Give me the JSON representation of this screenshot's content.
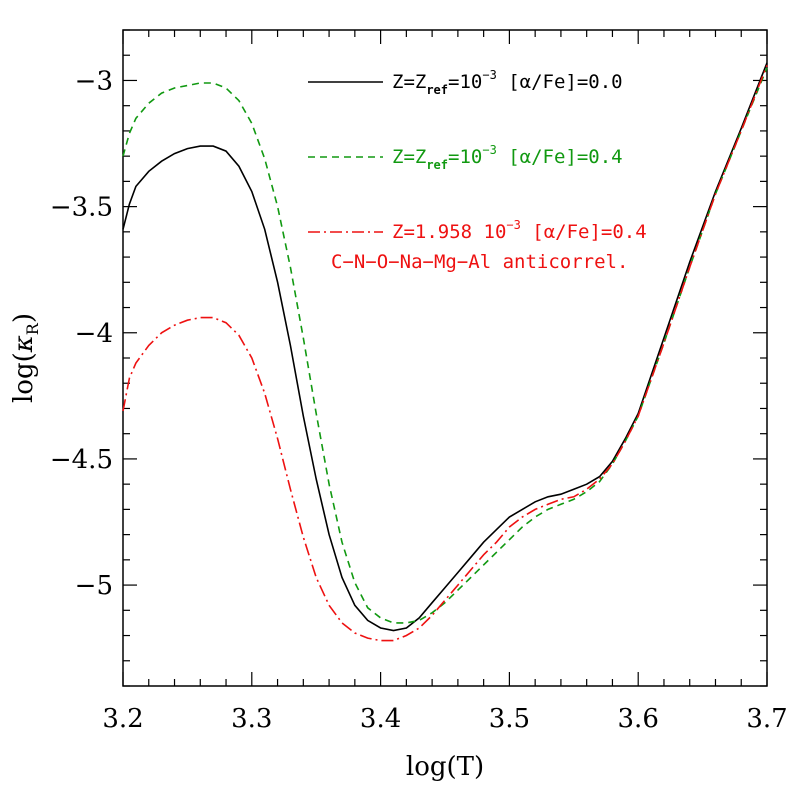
{
  "chart_data": {
    "type": "line",
    "xlabel": "log(T)",
    "ylabel_prefix": "log(",
    "ylabel_symbol": "κ",
    "ylabel_subscript": "R",
    "ylabel_suffix": ")",
    "xlim": [
      3.2,
      3.7
    ],
    "ylim": [
      -5.4,
      -2.8
    ],
    "xticks": [
      3.2,
      3.3,
      3.4,
      3.5,
      3.6,
      3.7
    ],
    "xtick_labels": [
      "3.2",
      "3.3",
      "3.4",
      "3.5",
      "3.6",
      "3.7"
    ],
    "yticks": [
      -3,
      -3.5,
      -4,
      -4.5,
      -5
    ],
    "ytick_labels": [
      "−3",
      "−3.5",
      "−4",
      "−4.5",
      "−5"
    ],
    "legend_position": "top-right",
    "series": [
      {
        "color": "#000000",
        "dash": "solid",
        "legend_parts": [
          "Z=Z",
          "ref",
          "=10",
          "−3",
          "  [α/Fe]=0.0"
        ],
        "x": [
          3.2,
          3.205,
          3.21,
          3.22,
          3.23,
          3.24,
          3.25,
          3.26,
          3.265,
          3.27,
          3.28,
          3.29,
          3.3,
          3.31,
          3.32,
          3.33,
          3.34,
          3.35,
          3.36,
          3.37,
          3.38,
          3.39,
          3.4,
          3.41,
          3.42,
          3.43,
          3.44,
          3.45,
          3.46,
          3.47,
          3.48,
          3.49,
          3.5,
          3.51,
          3.52,
          3.53,
          3.54,
          3.55,
          3.56,
          3.57,
          3.58,
          3.59,
          3.6,
          3.62,
          3.64,
          3.66,
          3.68,
          3.7
        ],
        "y": [
          -3.59,
          -3.49,
          -3.42,
          -3.36,
          -3.32,
          -3.29,
          -3.27,
          -3.26,
          -3.26,
          -3.26,
          -3.28,
          -3.34,
          -3.44,
          -3.59,
          -3.8,
          -4.05,
          -4.33,
          -4.58,
          -4.8,
          -4.97,
          -5.08,
          -5.14,
          -5.17,
          -5.18,
          -5.17,
          -5.13,
          -5.07,
          -5.01,
          -4.95,
          -4.89,
          -4.83,
          -4.78,
          -4.73,
          -4.7,
          -4.67,
          -4.65,
          -4.64,
          -4.62,
          -4.6,
          -4.57,
          -4.51,
          -4.42,
          -4.32,
          -4.02,
          -3.72,
          -3.44,
          -3.19,
          -2.93
        ]
      },
      {
        "color": "#119911",
        "dash": "dashed",
        "legend_parts": [
          "Z=Z",
          "ref",
          "=10",
          "−3",
          "  [α/Fe]=0.4"
        ],
        "x": [
          3.2,
          3.205,
          3.21,
          3.22,
          3.23,
          3.24,
          3.25,
          3.26,
          3.265,
          3.27,
          3.28,
          3.29,
          3.3,
          3.31,
          3.32,
          3.33,
          3.34,
          3.35,
          3.36,
          3.37,
          3.38,
          3.39,
          3.4,
          3.41,
          3.42,
          3.43,
          3.44,
          3.45,
          3.46,
          3.47,
          3.48,
          3.49,
          3.5,
          3.51,
          3.52,
          3.53,
          3.54,
          3.55,
          3.56,
          3.57,
          3.58,
          3.59,
          3.6,
          3.62,
          3.64,
          3.66,
          3.68,
          3.7
        ],
        "y": [
          -3.3,
          -3.21,
          -3.15,
          -3.09,
          -3.05,
          -3.03,
          -3.02,
          -3.01,
          -3.01,
          -3.01,
          -3.03,
          -3.08,
          -3.17,
          -3.31,
          -3.5,
          -3.74,
          -4.02,
          -4.32,
          -4.6,
          -4.83,
          -4.99,
          -5.09,
          -5.13,
          -5.15,
          -5.15,
          -5.14,
          -5.11,
          -5.07,
          -5.02,
          -4.97,
          -4.92,
          -4.87,
          -4.82,
          -4.77,
          -4.73,
          -4.7,
          -4.68,
          -4.66,
          -4.63,
          -4.59,
          -4.52,
          -4.43,
          -4.33,
          -4.04,
          -3.74,
          -3.45,
          -3.2,
          -2.95
        ]
      },
      {
        "color": "#ee1111",
        "dash": "dash-dot",
        "legend_parts": [
          "Z=1.958 10",
          "−3",
          "  [α/Fe]=0.4"
        ],
        "legend_line2": "C−N−O−Na−Mg−Al anticorrel.",
        "x": [
          3.2,
          3.205,
          3.21,
          3.22,
          3.23,
          3.24,
          3.25,
          3.26,
          3.265,
          3.27,
          3.28,
          3.29,
          3.3,
          3.31,
          3.32,
          3.33,
          3.34,
          3.35,
          3.36,
          3.37,
          3.38,
          3.39,
          3.4,
          3.41,
          3.42,
          3.43,
          3.44,
          3.45,
          3.46,
          3.47,
          3.48,
          3.49,
          3.5,
          3.51,
          3.52,
          3.53,
          3.54,
          3.55,
          3.56,
          3.57,
          3.58,
          3.59,
          3.6,
          3.62,
          3.64,
          3.66,
          3.68,
          3.7
        ],
        "y": [
          -4.31,
          -4.18,
          -4.12,
          -4.05,
          -4.0,
          -3.97,
          -3.95,
          -3.94,
          -3.94,
          -3.94,
          -3.96,
          -4.01,
          -4.1,
          -4.24,
          -4.42,
          -4.62,
          -4.81,
          -4.97,
          -5.08,
          -5.15,
          -5.19,
          -5.21,
          -5.22,
          -5.22,
          -5.2,
          -5.17,
          -5.12,
          -5.06,
          -5.0,
          -4.94,
          -4.88,
          -4.83,
          -4.77,
          -4.73,
          -4.7,
          -4.68,
          -4.66,
          -4.65,
          -4.62,
          -4.58,
          -4.52,
          -4.43,
          -4.33,
          -4.04,
          -3.74,
          -3.45,
          -3.2,
          -2.94
        ]
      }
    ]
  }
}
